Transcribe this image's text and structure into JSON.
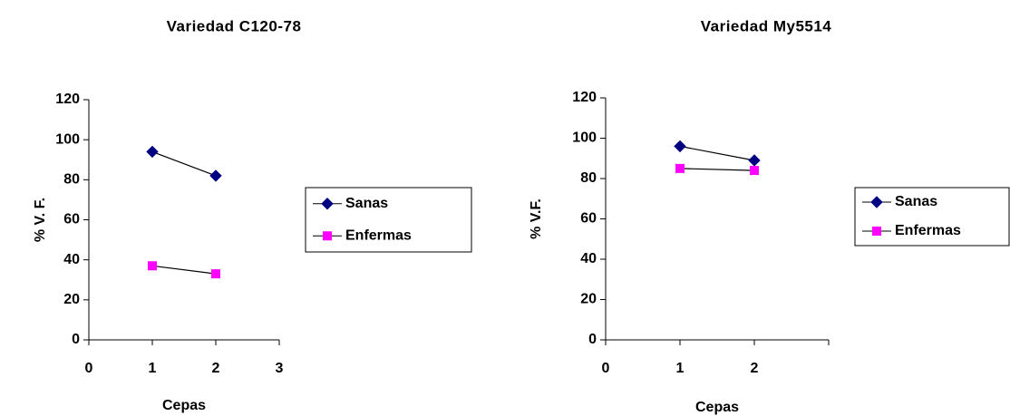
{
  "chart_data": [
    {
      "type": "line",
      "title": "Variedad C120-78",
      "x_label": "Cepas",
      "y_label": "% V. F.",
      "x": [
        1,
        2
      ],
      "xlim": [
        0,
        3
      ],
      "xticks": [
        0,
        1,
        2,
        3
      ],
      "ylim": [
        0,
        120
      ],
      "yticks": [
        0,
        20,
        40,
        60,
        80,
        100,
        120
      ],
      "legend": "right",
      "series": [
        {
          "name": "Sanas",
          "color": "#000080",
          "marker": "diamond",
          "values": [
            94,
            82
          ]
        },
        {
          "name": "Enfermas",
          "color": "#ff00ff",
          "marker": "square",
          "values": [
            37,
            33
          ]
        }
      ]
    },
    {
      "type": "line",
      "title": "Variedad My5514",
      "x_label": "Cepas",
      "y_label": "% V.F.",
      "x": [
        1,
        2
      ],
      "xlim": [
        0,
        3
      ],
      "xticks": [
        0,
        1,
        2
      ],
      "ylim": [
        0,
        120
      ],
      "yticks": [
        0,
        20,
        40,
        60,
        80,
        100,
        120
      ],
      "legend": "right",
      "series": [
        {
          "name": "Sanas",
          "color": "#000080",
          "marker": "diamond",
          "values": [
            96,
            89
          ]
        },
        {
          "name": "Enfermas",
          "color": "#ff00ff",
          "marker": "square",
          "values": [
            85,
            84
          ]
        }
      ]
    }
  ]
}
